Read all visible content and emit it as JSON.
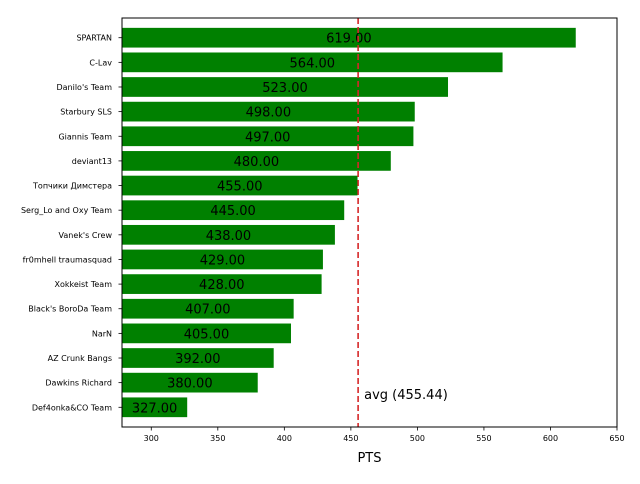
{
  "chart_data": {
    "type": "bar",
    "orientation": "horizontal",
    "categories": [
      "SPARTAN",
      "C-Lav",
      "Danilo's Team",
      "Starbury SLS",
      "Giannis Team",
      "deviant13",
      "Топчики Димстера",
      "Serg_Lo and Oxy Team",
      "Vanek's Crew",
      "fr0mhell traumasquad",
      "Xokkeist Team",
      "Black's BoroDa Team",
      "NarN",
      "AZ Crunk Bangs",
      "Dawkins Richard",
      "Def4onka&CO Team"
    ],
    "values": [
      619,
      564,
      523,
      498,
      497,
      480,
      455,
      445,
      438,
      429,
      428,
      407,
      405,
      392,
      380,
      327
    ],
    "value_labels": [
      "619.00",
      "564.00",
      "523.00",
      "498.00",
      "497.00",
      "480.00",
      "455.00",
      "445.00",
      "438.00",
      "429.00",
      "428.00",
      "407.00",
      "405.00",
      "392.00",
      "380.00",
      "327.00"
    ],
    "xlabel": "PTS",
    "xlim": [
      278,
      650
    ],
    "xticks": [
      300,
      350,
      400,
      450,
      500,
      550,
      600,
      650
    ],
    "bar_color": "#008000",
    "average": {
      "value": 455.44,
      "label": "avg (455.44)",
      "color": "#d62728"
    },
    "grid": false
  }
}
